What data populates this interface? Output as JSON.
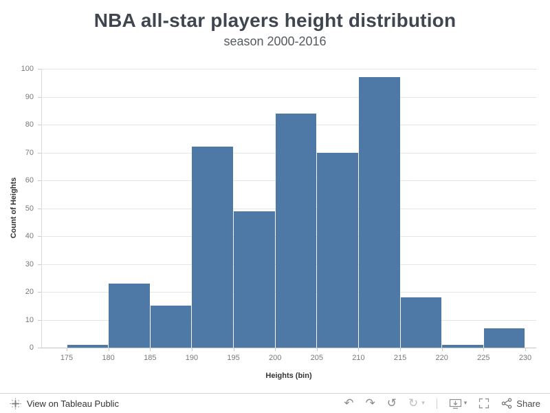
{
  "chart_data": {
    "type": "bar",
    "title": "NBA all-star players height distribution",
    "subtitle": "season 2000-2016",
    "xlabel": "Heights (bin)",
    "ylabel": "Count of Heights",
    "bin_edges": [
      175,
      180,
      185,
      190,
      195,
      200,
      205,
      210,
      215,
      220,
      225,
      230
    ],
    "values": [
      1,
      23,
      15,
      72,
      49,
      84,
      70,
      97,
      18,
      1,
      7
    ],
    "ylim": [
      0,
      100
    ],
    "yticks": [
      0,
      10,
      20,
      30,
      40,
      50,
      60,
      70,
      80,
      90,
      100
    ],
    "bar_color": "#4e79a7",
    "grid": true,
    "legend": "none"
  },
  "toolbar": {
    "view_label": "View on Tableau Public",
    "share_label": "Share",
    "glyphs": {
      "undo": "↶",
      "redo": "↷",
      "revert": "↺",
      "refresh": "↻",
      "caret": "▾"
    }
  }
}
